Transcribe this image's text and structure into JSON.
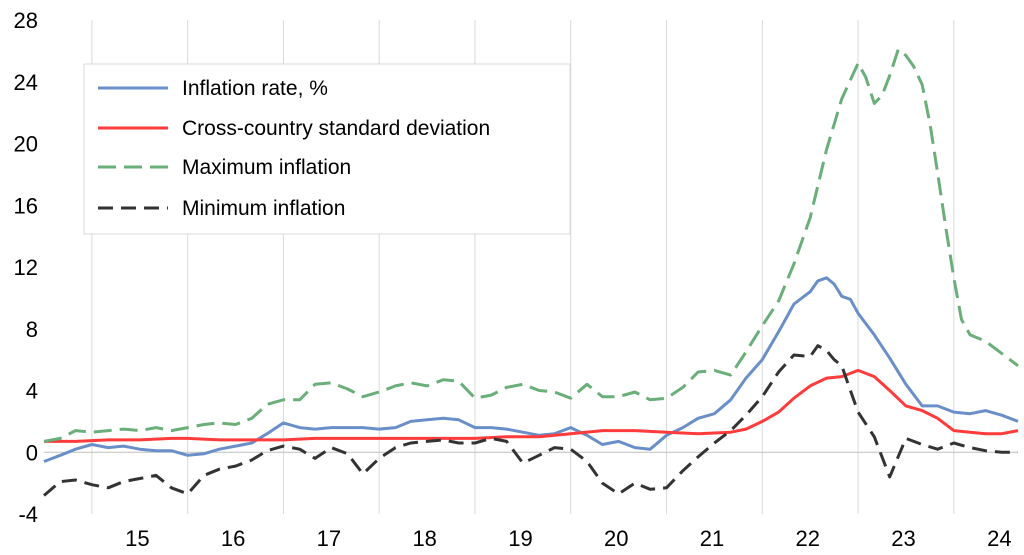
{
  "chart_data": {
    "type": "line",
    "title": "",
    "xlabel": "",
    "ylabel": "",
    "xlim": [
      2014.5,
      2024.67
    ],
    "ylim": [
      -4,
      28
    ],
    "yticks": [
      -4,
      0,
      4,
      8,
      12,
      16,
      20,
      24,
      28
    ],
    "ytick_labels": [
      "-4",
      "0",
      "4",
      "8",
      "12",
      "16",
      "20",
      "24",
      "28"
    ],
    "x_categories": [
      "15",
      "16",
      "17",
      "18",
      "19",
      "20",
      "21",
      "22",
      "23",
      "24"
    ],
    "grid": "vertical",
    "legend_position": "top-left",
    "series": [
      {
        "name": "Inflation rate, %",
        "color": "#6a8fc8",
        "style": "solid",
        "points": [
          [
            2014.5,
            -0.6
          ],
          [
            2014.67,
            -0.2
          ],
          [
            2014.83,
            0.2
          ],
          [
            2015.0,
            0.5
          ],
          [
            2015.17,
            0.3
          ],
          [
            2015.33,
            0.4
          ],
          [
            2015.5,
            0.2
          ],
          [
            2015.67,
            0.1
          ],
          [
            2015.83,
            0.1
          ],
          [
            2016.0,
            -0.2
          ],
          [
            2016.17,
            -0.1
          ],
          [
            2016.33,
            0.2
          ],
          [
            2016.5,
            0.4
          ],
          [
            2016.67,
            0.6
          ],
          [
            2016.83,
            1.2
          ],
          [
            2017.0,
            1.9
          ],
          [
            2017.17,
            1.6
          ],
          [
            2017.33,
            1.5
          ],
          [
            2017.5,
            1.6
          ],
          [
            2017.67,
            1.6
          ],
          [
            2017.83,
            1.6
          ],
          [
            2018.0,
            1.5
          ],
          [
            2018.17,
            1.6
          ],
          [
            2018.33,
            2.0
          ],
          [
            2018.5,
            2.1
          ],
          [
            2018.67,
            2.2
          ],
          [
            2018.83,
            2.1
          ],
          [
            2019.0,
            1.6
          ],
          [
            2019.17,
            1.6
          ],
          [
            2019.33,
            1.5
          ],
          [
            2019.5,
            1.3
          ],
          [
            2019.67,
            1.1
          ],
          [
            2019.83,
            1.2
          ],
          [
            2020.0,
            1.6
          ],
          [
            2020.17,
            1.1
          ],
          [
            2020.33,
            0.5
          ],
          [
            2020.5,
            0.7
          ],
          [
            2020.67,
            0.3
          ],
          [
            2020.83,
            0.2
          ],
          [
            2021.0,
            1.1
          ],
          [
            2021.17,
            1.6
          ],
          [
            2021.33,
            2.2
          ],
          [
            2021.5,
            2.5
          ],
          [
            2021.67,
            3.4
          ],
          [
            2021.83,
            4.8
          ],
          [
            2022.0,
            6.0
          ],
          [
            2022.17,
            7.8
          ],
          [
            2022.33,
            9.6
          ],
          [
            2022.5,
            10.4
          ],
          [
            2022.58,
            11.1
          ],
          [
            2022.67,
            11.3
          ],
          [
            2022.75,
            10.9
          ],
          [
            2022.83,
            10.1
          ],
          [
            2022.92,
            9.9
          ],
          [
            2023.0,
            9.0
          ],
          [
            2023.17,
            7.6
          ],
          [
            2023.33,
            6.1
          ],
          [
            2023.5,
            4.4
          ],
          [
            2023.67,
            3.0
          ],
          [
            2023.83,
            3.0
          ],
          [
            2024.0,
            2.6
          ],
          [
            2024.17,
            2.5
          ],
          [
            2024.33,
            2.7
          ],
          [
            2024.5,
            2.4
          ],
          [
            2024.67,
            2.0
          ]
        ]
      },
      {
        "name": "Cross-country standard deviation",
        "color": "#ff3b3b",
        "style": "solid",
        "points": [
          [
            2014.5,
            0.7
          ],
          [
            2014.83,
            0.7
          ],
          [
            2015.17,
            0.8
          ],
          [
            2015.5,
            0.8
          ],
          [
            2015.83,
            0.9
          ],
          [
            2016.0,
            0.9
          ],
          [
            2016.33,
            0.8
          ],
          [
            2016.67,
            0.8
          ],
          [
            2017.0,
            0.8
          ],
          [
            2017.33,
            0.9
          ],
          [
            2017.67,
            0.9
          ],
          [
            2018.0,
            0.9
          ],
          [
            2018.33,
            0.9
          ],
          [
            2018.67,
            0.9
          ],
          [
            2019.0,
            0.9
          ],
          [
            2019.33,
            1.0
          ],
          [
            2019.67,
            1.0
          ],
          [
            2020.0,
            1.2
          ],
          [
            2020.33,
            1.4
          ],
          [
            2020.67,
            1.4
          ],
          [
            2021.0,
            1.3
          ],
          [
            2021.33,
            1.2
          ],
          [
            2021.67,
            1.3
          ],
          [
            2021.83,
            1.5
          ],
          [
            2022.0,
            2.0
          ],
          [
            2022.17,
            2.6
          ],
          [
            2022.33,
            3.5
          ],
          [
            2022.5,
            4.3
          ],
          [
            2022.67,
            4.8
          ],
          [
            2022.83,
            4.9
          ],
          [
            2023.0,
            5.3
          ],
          [
            2023.17,
            4.9
          ],
          [
            2023.33,
            4.0
          ],
          [
            2023.5,
            3.0
          ],
          [
            2023.67,
            2.7
          ],
          [
            2023.83,
            2.2
          ],
          [
            2024.0,
            1.4
          ],
          [
            2024.17,
            1.3
          ],
          [
            2024.33,
            1.2
          ],
          [
            2024.5,
            1.2
          ],
          [
            2024.67,
            1.4
          ]
        ]
      },
      {
        "name": "Maximum inflation",
        "color": "#6aaf7a",
        "style": "dashed",
        "points": [
          [
            2014.5,
            0.7
          ],
          [
            2014.67,
            0.9
          ],
          [
            2014.83,
            1.4
          ],
          [
            2015.0,
            1.3
          ],
          [
            2015.17,
            1.4
          ],
          [
            2015.33,
            1.5
          ],
          [
            2015.5,
            1.4
          ],
          [
            2015.67,
            1.6
          ],
          [
            2015.83,
            1.4
          ],
          [
            2016.0,
            1.6
          ],
          [
            2016.17,
            1.8
          ],
          [
            2016.33,
            1.9
          ],
          [
            2016.5,
            1.8
          ],
          [
            2016.67,
            2.2
          ],
          [
            2016.83,
            3.1
          ],
          [
            2017.0,
            3.4
          ],
          [
            2017.17,
            3.4
          ],
          [
            2017.33,
            4.4
          ],
          [
            2017.5,
            4.5
          ],
          [
            2017.67,
            4.1
          ],
          [
            2017.83,
            3.6
          ],
          [
            2018.0,
            3.9
          ],
          [
            2018.17,
            4.3
          ],
          [
            2018.33,
            4.5
          ],
          [
            2018.5,
            4.3
          ],
          [
            2018.67,
            4.7
          ],
          [
            2018.83,
            4.6
          ],
          [
            2019.0,
            3.5
          ],
          [
            2019.17,
            3.7
          ],
          [
            2019.33,
            4.2
          ],
          [
            2019.5,
            4.4
          ],
          [
            2019.67,
            4.0
          ],
          [
            2019.83,
            3.9
          ],
          [
            2020.0,
            3.5
          ],
          [
            2020.17,
            4.4
          ],
          [
            2020.33,
            3.6
          ],
          [
            2020.5,
            3.6
          ],
          [
            2020.67,
            3.9
          ],
          [
            2020.83,
            3.4
          ],
          [
            2021.0,
            3.5
          ],
          [
            2021.17,
            4.2
          ],
          [
            2021.33,
            5.2
          ],
          [
            2021.5,
            5.3
          ],
          [
            2021.67,
            5.0
          ],
          [
            2021.83,
            6.5
          ],
          [
            2022.0,
            8.2
          ],
          [
            2022.17,
            9.8
          ],
          [
            2022.33,
            12.2
          ],
          [
            2022.5,
            15.2
          ],
          [
            2022.67,
            19.6
          ],
          [
            2022.83,
            22.9
          ],
          [
            2023.0,
            25.2
          ],
          [
            2023.08,
            24.3
          ],
          [
            2023.17,
            22.6
          ],
          [
            2023.25,
            23.1
          ],
          [
            2023.33,
            24.4
          ],
          [
            2023.42,
            26.1
          ],
          [
            2023.5,
            25.7
          ],
          [
            2023.58,
            25.0
          ],
          [
            2023.67,
            23.8
          ],
          [
            2023.75,
            21.3
          ],
          [
            2023.83,
            18.1
          ],
          [
            2023.92,
            14.4
          ],
          [
            2024.0,
            11.3
          ],
          [
            2024.08,
            8.6
          ],
          [
            2024.17,
            7.6
          ],
          [
            2024.33,
            7.2
          ],
          [
            2024.5,
            6.4
          ],
          [
            2024.67,
            5.6
          ]
        ]
      },
      {
        "name": "Minimum inflation",
        "color": "#333333",
        "style": "dashed",
        "points": [
          [
            2014.5,
            -2.8
          ],
          [
            2014.67,
            -1.9
          ],
          [
            2014.83,
            -1.8
          ],
          [
            2015.0,
            -2.1
          ],
          [
            2015.17,
            -2.3
          ],
          [
            2015.33,
            -1.9
          ],
          [
            2015.5,
            -1.7
          ],
          [
            2015.67,
            -1.5
          ],
          [
            2015.83,
            -2.3
          ],
          [
            2016.0,
            -2.7
          ],
          [
            2016.17,
            -1.5
          ],
          [
            2016.33,
            -1.1
          ],
          [
            2016.5,
            -0.9
          ],
          [
            2016.67,
            -0.5
          ],
          [
            2016.83,
            0.1
          ],
          [
            2017.0,
            0.4
          ],
          [
            2017.17,
            0.2
          ],
          [
            2017.33,
            -0.4
          ],
          [
            2017.5,
            0.3
          ],
          [
            2017.67,
            -0.1
          ],
          [
            2017.83,
            -1.4
          ],
          [
            2018.0,
            -0.4
          ],
          [
            2018.17,
            0.3
          ],
          [
            2018.33,
            0.6
          ],
          [
            2018.5,
            0.7
          ],
          [
            2018.67,
            0.8
          ],
          [
            2018.83,
            0.6
          ],
          [
            2019.0,
            0.6
          ],
          [
            2019.17,
            0.9
          ],
          [
            2019.33,
            0.7
          ],
          [
            2019.5,
            -0.7
          ],
          [
            2019.67,
            -0.2
          ],
          [
            2019.83,
            0.3
          ],
          [
            2020.0,
            0.2
          ],
          [
            2020.17,
            -0.6
          ],
          [
            2020.33,
            -2.0
          ],
          [
            2020.5,
            -2.7
          ],
          [
            2020.67,
            -2.0
          ],
          [
            2020.83,
            -2.4
          ],
          [
            2021.0,
            -2.3
          ],
          [
            2021.17,
            -1.2
          ],
          [
            2021.33,
            -0.3
          ],
          [
            2021.5,
            0.6
          ],
          [
            2021.67,
            1.4
          ],
          [
            2021.83,
            2.4
          ],
          [
            2022.0,
            3.6
          ],
          [
            2022.17,
            5.2
          ],
          [
            2022.33,
            6.3
          ],
          [
            2022.5,
            6.2
          ],
          [
            2022.58,
            6.9
          ],
          [
            2022.67,
            6.6
          ],
          [
            2022.75,
            6.0
          ],
          [
            2022.83,
            5.6
          ],
          [
            2022.92,
            4.0
          ],
          [
            2023.0,
            2.6
          ],
          [
            2023.17,
            1.0
          ],
          [
            2023.33,
            -1.6
          ],
          [
            2023.5,
            0.9
          ],
          [
            2023.67,
            0.5
          ],
          [
            2023.83,
            0.2
          ],
          [
            2024.0,
            0.6
          ],
          [
            2024.17,
            0.3
          ],
          [
            2024.33,
            0.1
          ],
          [
            2024.5,
            0.0
          ],
          [
            2024.67,
            0.0
          ]
        ]
      }
    ]
  }
}
